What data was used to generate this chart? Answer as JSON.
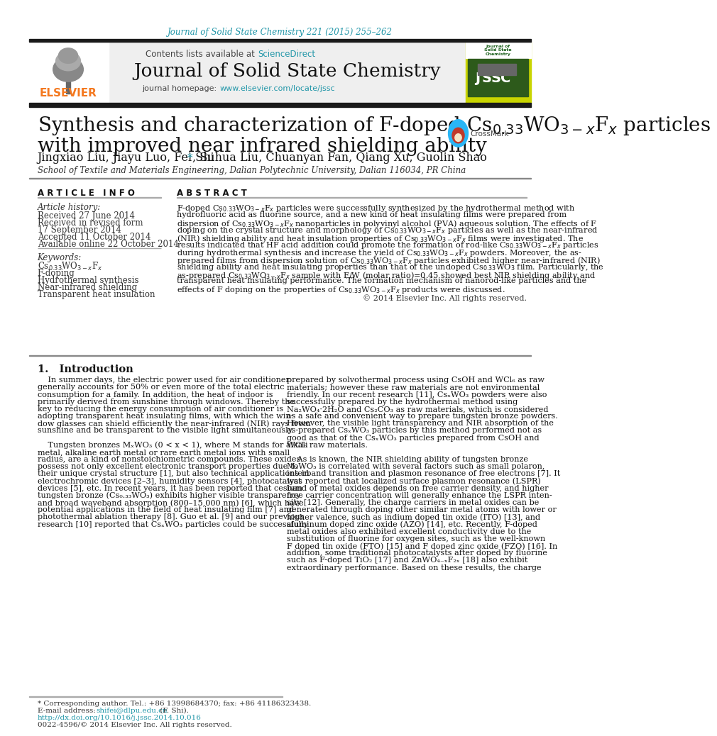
{
  "page_title": "Journal of Solid State Chemistry 221 (2015) 255–262",
  "journal_name": "Journal of Solid State Chemistry",
  "contents_text": "Contents lists available at ",
  "science_direct": "ScienceDirect",
  "journal_homepage_text": "journal homepage: ",
  "journal_url": "www.elsevier.com/locate/jssc",
  "article_title_line1": "Synthesis and characterization of F-doped Cs$_{0.33}$WO$_{3-x}$F$_{x}$ particles",
  "article_title_line2": "with improved near infrared shielding ability",
  "authors_before_star": "Jingxiao Liu, Jiayu Luo, Fei Shi ",
  "authors_after_star": ", Suhua Liu, Chuanyan Fan, Qiang Xu, Guolin Shao",
  "affiliation": "School of Textile and Materials Engineering, Dalian Polytechnic University, Dalian 116034, PR China",
  "article_info_title": "A R T I C L E   I N F O",
  "abstract_title": "A B S T R A C T",
  "article_history_label": "Article history:",
  "received_1": "Received 27 June 2014",
  "received_2": "Received in revised form",
  "received_2b": "17 September 2014",
  "accepted": "Accepted 11 October 2014",
  "available": "Available online 22 October 2014",
  "keywords_label": "Keywords:",
  "keyword1": "Cs$_{0.33}$WO$_{3-x}$F$_{x}$",
  "keyword2": "F-doping",
  "keyword3": "Hydrothermal synthesis",
  "keyword4": "Near-infrared shielding",
  "keyword5": "Transparent heat insulation",
  "copyright": "© 2014 Elsevier Inc. All rights reserved.",
  "intro_title": "1.   Introduction",
  "footer_star": "* Corresponding author. Tel.: +86 13998684370; fax: +86 41186323438.",
  "footer_email_label": "E-mail address: ",
  "footer_email_link": "shifei@dlpu.edu.cn",
  "footer_email_suffix": " (F. Shi).",
  "footer_doi": "http://dx.doi.org/10.1016/j.jssc.2014.10.016",
  "footer_issn": "0022-4596/© 2014 Elsevier Inc. All rights reserved.",
  "header_bg": "#efefef",
  "link_color": "#2196a8",
  "elsevier_color": "#f47920",
  "black_bar_color": "#1a1a1a",
  "article_title_color": "#111111",
  "text_color": "#111111",
  "gray_text": "#333333"
}
